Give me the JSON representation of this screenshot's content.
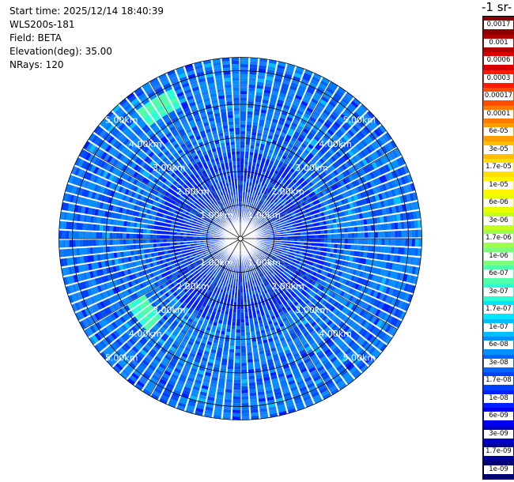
{
  "info": {
    "start_time": "Start time: 2025/12/14 18:40:39",
    "instrument": "WLS200s-181",
    "field": "Field: BETA",
    "elevation": "Elevation(deg): 35.00",
    "nrays": "NRays: 120"
  },
  "colorbar": {
    "title": "-1 sr-",
    "labels": [
      "0.0017",
      "0.001",
      "0.0006",
      "0.0003",
      "0.00017",
      "0.0001",
      "6e-05",
      "3e-05",
      "1.7e-05",
      "1e-05",
      "6e-06",
      "3e-06",
      "1.7e-06",
      "1e-06",
      "6e-07",
      "3e-07",
      "1.7e-07",
      "1e-07",
      "6e-08",
      "3e-08",
      "1.7e-08",
      "1e-08",
      "6e-09",
      "3e-09",
      "1.7e-09",
      "1e-09"
    ],
    "colors": [
      "#8b0000",
      "#b00000",
      "#d80000",
      "#ff1a00",
      "#ff4d00",
      "#ff7a00",
      "#ff9e00",
      "#ffbf00",
      "#ffdf00",
      "#fff500",
      "#e8ff00",
      "#c4ff20",
      "#9cff50",
      "#7cff7c",
      "#50ffa8",
      "#2affd6",
      "#00e6ff",
      "#00bfff",
      "#0090ff",
      "#0064ff",
      "#0040ff",
      "#0020ff",
      "#0000ee",
      "#0000c4",
      "#000098",
      "#00006e"
    ]
  },
  "chart_data": {
    "type": "polar-ppi",
    "field": "BETA",
    "elevation_deg": 35.0,
    "n_rays": 120,
    "range_rings_km": [
      1,
      2,
      3,
      4,
      5
    ],
    "ring_labels": [
      "1.00km",
      "2.00km",
      "3.00km",
      "4.00km",
      "5.00km"
    ],
    "max_range_km": 5.4,
    "colorbar_ticks": [
      "0.0017",
      "0.001",
      "0.0006",
      "0.0003",
      "0.00017",
      "0.0001",
      "6e-05",
      "3e-05",
      "1.7e-05",
      "1e-05",
      "6e-06",
      "3e-06",
      "1.7e-06",
      "1e-06",
      "6e-07",
      "3e-07",
      "1.7e-07",
      "1e-07",
      "6e-08",
      "3e-08",
      "1.7e-08",
      "1e-08",
      "6e-09",
      "3e-09",
      "1.7e-09",
      "1e-09"
    ],
    "dominant_values": [
      "3e-08",
      "6e-08",
      "1e-08"
    ],
    "features": [
      {
        "label": "higher backscatter band",
        "azimuth_deg": [
          -40,
          -25
        ],
        "range_km": [
          4.3,
          4.9
        ],
        "value": "3e-07"
      },
      {
        "label": "higher backscatter band",
        "azimuth_deg": [
          225,
          240
        ],
        "range_km": [
          3.3,
          3.9
        ],
        "value": "3e-07"
      }
    ]
  }
}
